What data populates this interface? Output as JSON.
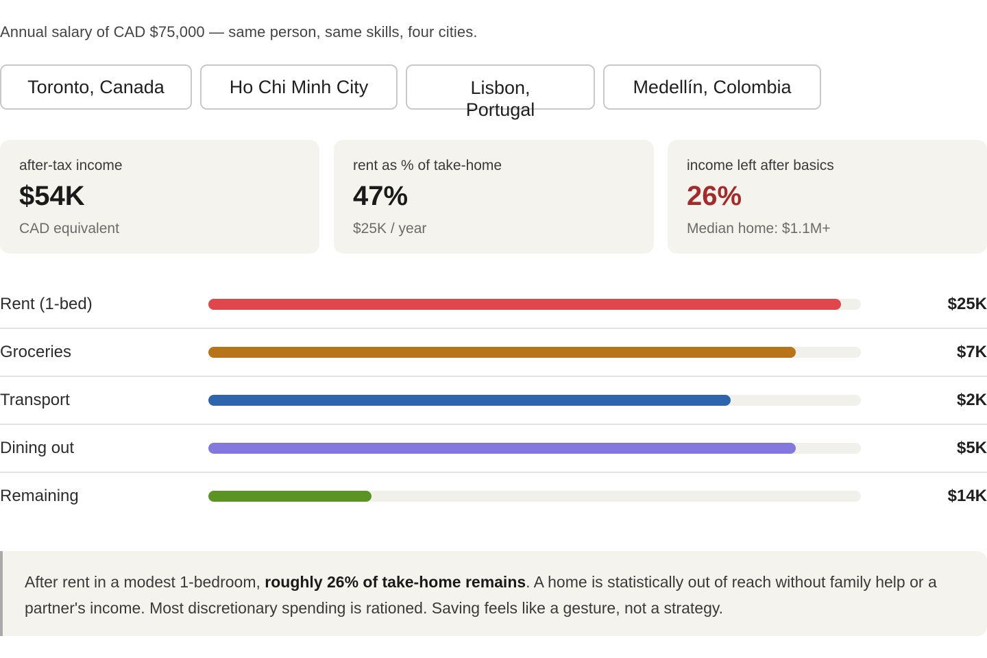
{
  "subtitle": "Annual salary of CAD $75,000 — same person, same skills, four cities.",
  "city_tabs": [
    {
      "label": "Toronto, Canada"
    },
    {
      "label": "Ho Chi Minh City"
    },
    {
      "label_line1": "Lisbon,",
      "label_line2": "Portugal"
    },
    {
      "label": "Medellín, Colombia"
    }
  ],
  "stats": [
    {
      "label": "after-tax income",
      "value": "$54K",
      "note": "CAD equivalent"
    },
    {
      "label": "rent as % of take-home",
      "value": "47%",
      "note": "$25K / year"
    },
    {
      "label": "income left after basics",
      "value": "26%",
      "note": "Median home: $1.1M+",
      "value_color": "#a32b2b"
    }
  ],
  "breakdown": [
    {
      "label": "Rent (1-bed)",
      "value": "$25K",
      "fill_fraction": 0.97,
      "color": "#e0474c"
    },
    {
      "label": "Groceries",
      "value": "$7K",
      "fill_fraction": 0.9,
      "color": "#b8741a"
    },
    {
      "label": "Transport",
      "value": "$2K",
      "fill_fraction": 0.8,
      "color": "#2f65ad"
    },
    {
      "label": "Dining out",
      "value": "$5K",
      "fill_fraction": 0.9,
      "color": "#8478dc"
    },
    {
      "label": "Remaining",
      "value": "$14K",
      "fill_fraction": 0.25,
      "color": "#5b9325"
    }
  ],
  "callout": {
    "before": "After rent in a modest 1-bedroom, ",
    "emphasis": "roughly 26% of take-home remains",
    "after": ". A home is statistically out of reach without family help or a partner's income. Most discretionary spending is rationed. Saving feels like a gesture, not a strategy."
  }
}
